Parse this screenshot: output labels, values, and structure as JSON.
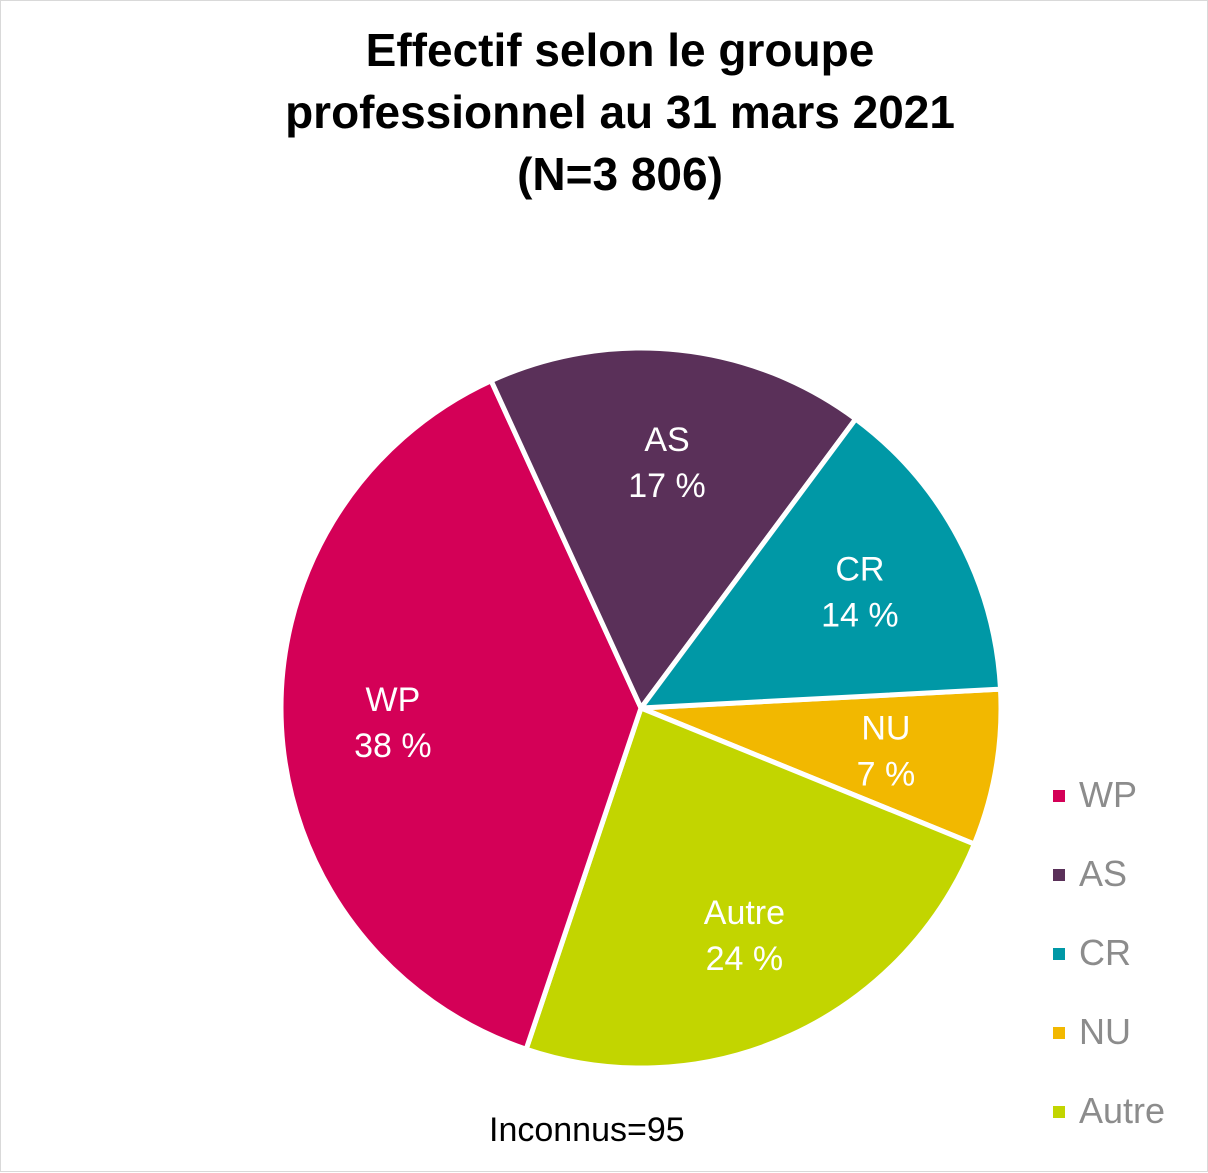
{
  "chart_data": {
    "type": "pie",
    "title": [
      "Effectif selon le groupe",
      "professionnel au 31 mars 2021",
      "(N=3 806)"
    ],
    "slices": [
      {
        "name": "NU",
        "value": 7,
        "label": "7 %",
        "color": "#f2b800"
      },
      {
        "name": "Autre",
        "value": 24,
        "label": "24 %",
        "color": "#c2d500"
      },
      {
        "name": "WP",
        "value": 38,
        "label": "38 %",
        "color": "#d40057"
      },
      {
        "name": "AS",
        "value": 17,
        "label": "17 %",
        "color": "#5a3059"
      },
      {
        "name": "CR",
        "value": 14,
        "label": "14 %",
        "color": "#0098a6"
      }
    ],
    "legend": {
      "placement": "right",
      "entries": [
        "WP",
        "AS",
        "CR",
        "NU",
        "Autre"
      ]
    },
    "note": "Inconnus=95"
  }
}
